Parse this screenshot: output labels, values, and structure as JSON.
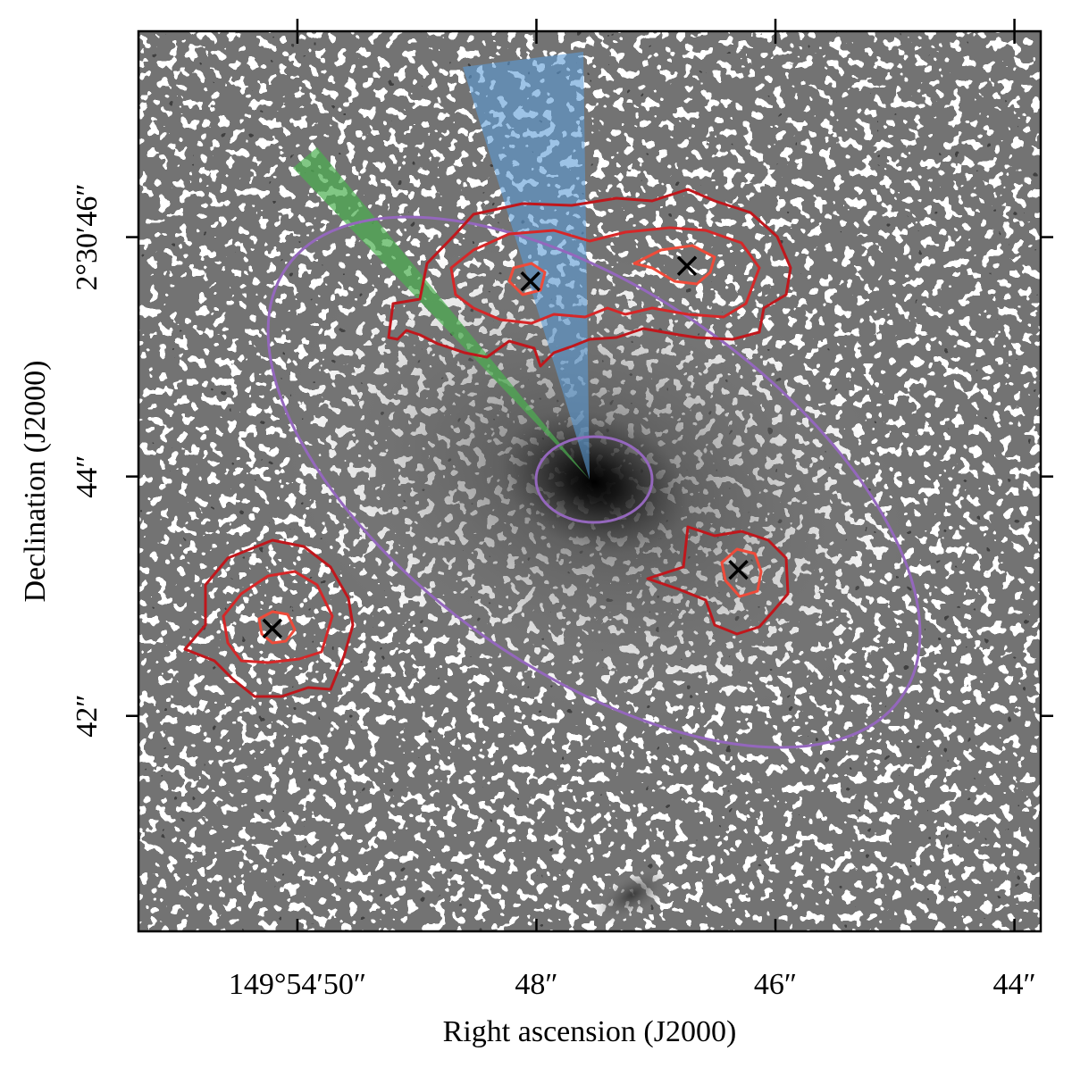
{
  "chart_data": {
    "type": "scatter",
    "x_label": "Right ascension (J2000)",
    "y_label": "Declination (J2000)",
    "xlim": [
      51.33,
      43.78
    ],
    "ylim": [
      40.2,
      47.72
    ],
    "xticks": [
      {
        "value": 50,
        "label": "149°54′50″"
      },
      {
        "value": 48,
        "label": "48″"
      },
      {
        "value": 46,
        "label": "46″"
      },
      {
        "value": 44,
        "label": "44″"
      }
    ],
    "yticks": [
      {
        "value": 46,
        "label": "2°30′46″"
      },
      {
        "value": 44,
        "label": "44″"
      },
      {
        "value": 42,
        "label": "42″"
      }
    ],
    "series": [
      {
        "color": "#000000",
        "x": [
          48.05,
          46.74,
          46.31,
          50.21
        ],
        "values": [
          45.63,
          45.76,
          43.22,
          42.73
        ]
      }
    ]
  }
}
